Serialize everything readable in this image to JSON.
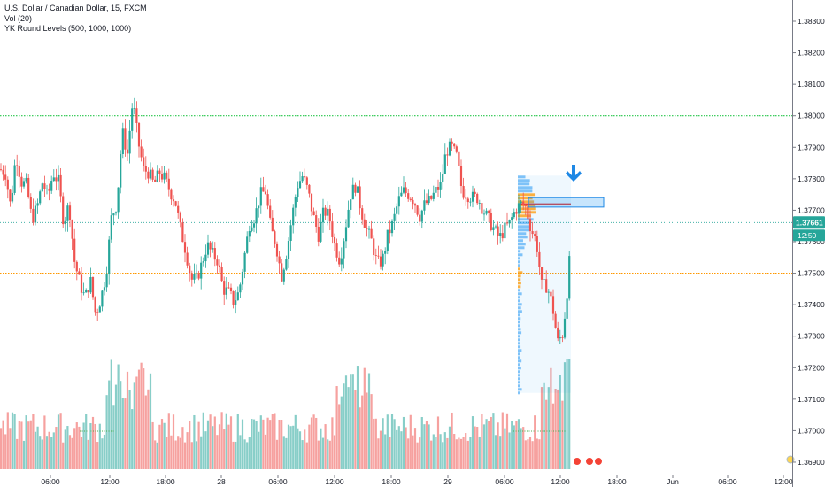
{
  "legend": {
    "symbol": "U.S. Dollar / Canadian Dollar, 15, FXCM",
    "volume": "Vol (20)",
    "indicator": "YK Round Levels (500, 1000, 1000)"
  },
  "chart_data": {
    "type": "candlestick",
    "symbol": "U.S. Dollar / Canadian Dollar",
    "interval": "15",
    "source": "FXCM",
    "y_ticks": [
      "1.38300",
      "1.38200",
      "1.38100",
      "1.38000",
      "1.37900",
      "1.37800",
      "1.37700",
      "1.37600",
      "1.37500",
      "1.37400",
      "1.37300",
      "1.37200",
      "1.37100",
      "1.37000",
      "1.36900"
    ],
    "ylim": [
      1.3688,
      1.384
    ],
    "x_ticks": [
      "06:00",
      "12:00",
      "18:00",
      "28",
      "06:00",
      "12:00",
      "18:00",
      "29",
      "06:00",
      "12:00",
      "18:00",
      "Jun",
      "06:00",
      "12:00"
    ],
    "current_price": "1.37661",
    "countdown": "12:50",
    "round_levels": [
      1.38,
      1.375
    ],
    "price_path": [
      [
        0,
        1.3783
      ],
      [
        6,
        1.3782
      ],
      [
        12,
        1.3771
      ],
      [
        18,
        1.3788
      ],
      [
        24,
        1.3779
      ],
      [
        30,
        1.3778
      ],
      [
        36,
        1.3767
      ],
      [
        42,
        1.3771
      ],
      [
        48,
        1.3779
      ],
      [
        54,
        1.3774
      ],
      [
        60,
        1.3782
      ],
      [
        66,
        1.3779
      ],
      [
        72,
        1.3766
      ],
      [
        78,
        1.3772
      ],
      [
        84,
        1.3754
      ],
      [
        90,
        1.3747
      ],
      [
        96,
        1.3742
      ],
      [
        102,
        1.3748
      ],
      [
        108,
        1.3737
      ],
      [
        114,
        1.3742
      ],
      [
        120,
        1.375
      ],
      [
        126,
        1.3768
      ],
      [
        132,
        1.3772
      ],
      [
        138,
        1.3795
      ],
      [
        144,
        1.3788
      ],
      [
        150,
        1.3805
      ],
      [
        156,
        1.3792
      ],
      [
        162,
        1.3783
      ],
      [
        168,
        1.3782
      ],
      [
        174,
        1.3778
      ],
      [
        180,
        1.3782
      ],
      [
        186,
        1.378
      ],
      [
        192,
        1.3776
      ],
      [
        198,
        1.3773
      ],
      [
        204,
        1.3764
      ],
      [
        210,
        1.3757
      ],
      [
        216,
        1.3748
      ],
      [
        222,
        1.3748
      ],
      [
        228,
        1.3753
      ],
      [
        234,
        1.3759
      ],
      [
        240,
        1.3756
      ],
      [
        246,
        1.3754
      ],
      [
        252,
        1.3745
      ],
      [
        258,
        1.3744
      ],
      [
        264,
        1.3741
      ],
      [
        270,
        1.3744
      ],
      [
        276,
        1.3755
      ],
      [
        282,
        1.3766
      ],
      [
        288,
        1.3768
      ],
      [
        294,
        1.3775
      ],
      [
        300,
        1.3776
      ],
      [
        306,
        1.3764
      ],
      [
        312,
        1.3759
      ],
      [
        318,
        1.3749
      ],
      [
        324,
        1.3757
      ],
      [
        330,
        1.3768
      ],
      [
        336,
        1.3778
      ],
      [
        342,
        1.3781
      ],
      [
        348,
        1.3776
      ],
      [
        354,
        1.3768
      ],
      [
        360,
        1.3762
      ],
      [
        366,
        1.377
      ],
      [
        372,
        1.3768
      ],
      [
        378,
        1.3759
      ],
      [
        384,
        1.3754
      ],
      [
        390,
        1.3764
      ],
      [
        396,
        1.3775
      ],
      [
        402,
        1.3778
      ],
      [
        408,
        1.377
      ],
      [
        414,
        1.3764
      ],
      [
        420,
        1.376
      ],
      [
        426,
        1.3753
      ],
      [
        432,
        1.3754
      ],
      [
        438,
        1.3762
      ],
      [
        444,
        1.3766
      ],
      [
        450,
        1.3773
      ],
      [
        456,
        1.3776
      ],
      [
        462,
        1.3775
      ],
      [
        468,
        1.3773
      ],
      [
        474,
        1.3768
      ],
      [
        480,
        1.3772
      ],
      [
        486,
        1.3773
      ],
      [
        492,
        1.3776
      ],
      [
        498,
        1.3778
      ],
      [
        504,
        1.3789
      ],
      [
        510,
        1.379
      ],
      [
        516,
        1.3787
      ],
      [
        522,
        1.3776
      ],
      [
        528,
        1.3775
      ],
      [
        534,
        1.3774
      ],
      [
        540,
        1.3774
      ],
      [
        546,
        1.377
      ],
      [
        552,
        1.3767
      ],
      [
        558,
        1.3764
      ],
      [
        564,
        1.3761
      ],
      [
        570,
        1.3764
      ],
      [
        576,
        1.3766
      ],
      [
        582,
        1.377
      ],
      [
        588,
        1.3772
      ],
      [
        594,
        1.3771
      ],
      [
        600,
        1.3764
      ],
      [
        606,
        1.376
      ],
      [
        612,
        1.3746
      ],
      [
        618,
        1.3746
      ],
      [
        624,
        1.374
      ],
      [
        630,
        1.3728
      ],
      [
        636,
        1.3731
      ],
      [
        642,
        1.3748
      ],
      [
        646,
        1.3766
      ]
    ],
    "volume_profile": {
      "price_high": 1.3781,
      "price_low": 1.3712,
      "poc": 1.3772
    },
    "highlight_zone": {
      "price_high": 1.3774,
      "price_low": 1.3771
    }
  }
}
